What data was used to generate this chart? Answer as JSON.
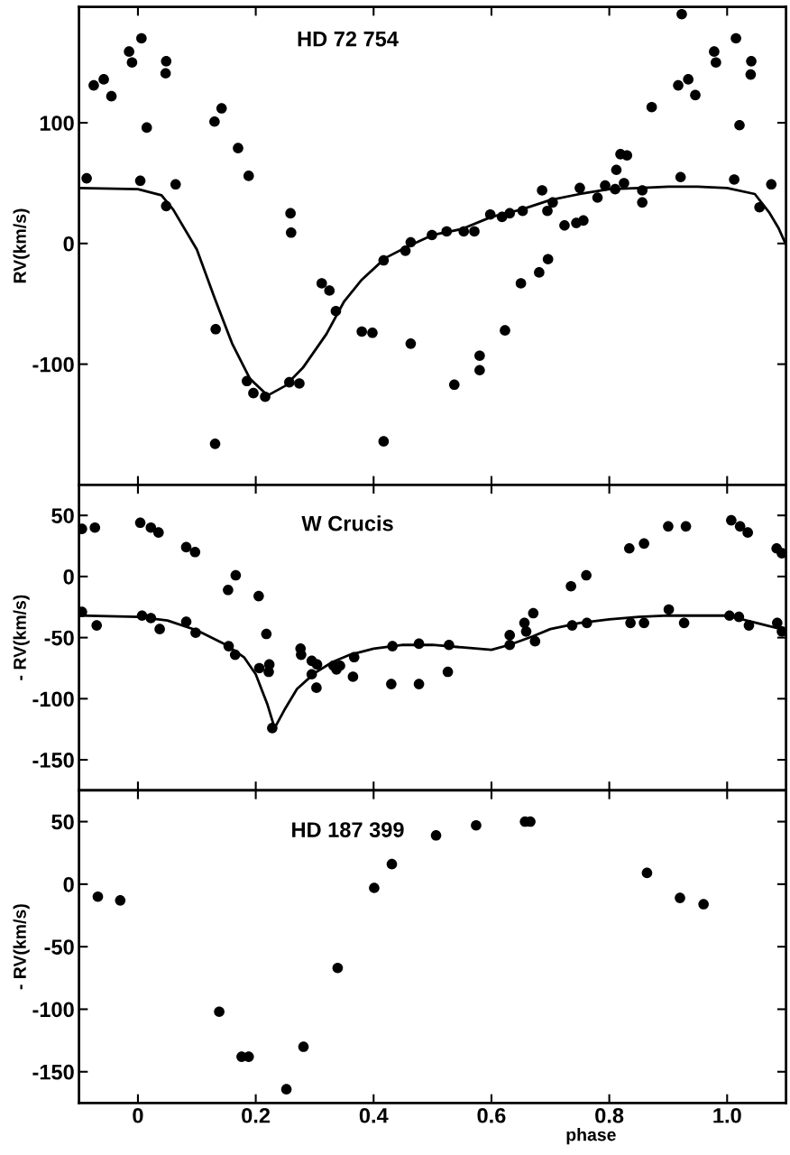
{
  "chart_data": [
    {
      "type": "scatter",
      "title": "HD 72 754",
      "ylabel": "RV(km/s)",
      "xlim": [
        -0.1,
        1.1
      ],
      "ylim": [
        -200,
        196
      ],
      "xticks": [
        0,
        0.2,
        0.4,
        0.6,
        0.8,
        1
      ],
      "yticks": [
        -100,
        0,
        100
      ],
      "tick_labels": "y",
      "marker": "circle",
      "grid": false,
      "legend": false,
      "series": [
        {
          "type": "scatter",
          "color": "#000000",
          "x": [
            -0.087,
            -0.075,
            -0.058,
            -0.045,
            -0.015,
            -0.01,
            0.006,
            0.015,
            0.004,
            0.048,
            0.047,
            0.064,
            0.048,
            0.13,
            0.142,
            0.132,
            0.131,
            0.17,
            0.188,
            0.185,
            0.196,
            0.216,
            0.259,
            0.26,
            0.257,
            0.274,
            0.312,
            0.325,
            0.336,
            0.38,
            0.398,
            0.417,
            0.417,
            0.454,
            0.463,
            0.463,
            0.499,
            0.524,
            0.553,
            0.571,
            0.598,
            0.618,
            0.631,
            0.653,
            0.686,
            0.695,
            0.704,
            0.724,
            0.744,
            0.756,
            0.75,
            0.78,
            0.793,
            0.81,
            0.812,
            0.819,
            0.83,
            0.825,
            0.856,
            0.856,
            0.537,
            0.58,
            0.58,
            0.623,
            0.65,
            0.681,
            0.696,
            0.872,
            0.917,
            0.934,
            0.946,
            0.923,
            0.921,
            0.978,
            0.981,
            1.015,
            1.021,
            1.041,
            1.04,
            1.012,
            1.055,
            1.075
          ],
          "values": [
            54,
            131,
            136,
            122,
            159,
            150,
            170,
            96,
            52,
            151,
            141,
            49,
            31,
            101,
            112,
            -71,
            -166,
            79,
            56,
            -114,
            -124,
            -127,
            25,
            9,
            -115,
            -116,
            -33,
            -39,
            -56,
            -73,
            -74,
            -14,
            -164,
            -6,
            1,
            -83,
            7,
            10,
            10,
            10,
            24,
            22,
            25,
            27,
            44,
            27,
            34,
            15,
            17,
            19,
            46,
            38,
            48,
            45,
            61,
            74,
            73,
            50,
            44,
            34,
            -117,
            -93,
            -105,
            -72,
            -33,
            -24,
            -13,
            113,
            131,
            136,
            123,
            190,
            55,
            159,
            150,
            170,
            98,
            151,
            140,
            53,
            30,
            49
          ]
        },
        {
          "type": "line",
          "color": "#000000",
          "marker": "none",
          "x": [
            -0.1,
            0.0,
            0.04,
            0.06,
            0.1,
            0.13,
            0.16,
            0.19,
            0.22,
            0.25,
            0.28,
            0.32,
            0.35,
            0.38,
            0.42,
            0.46,
            0.5,
            0.55,
            0.6,
            0.65,
            0.7,
            0.75,
            0.8,
            0.85,
            0.9,
            0.95,
            1.0,
            1.047,
            1.071,
            1.087,
            1.099
          ],
          "values": [
            46,
            45,
            40,
            28,
            -5,
            -45,
            -83,
            -112,
            -126,
            -118,
            -103,
            -75,
            -48,
            -30,
            -12,
            -2,
            7,
            12,
            22,
            28,
            36,
            41,
            45,
            46,
            47,
            47,
            46,
            41,
            26,
            13,
            0
          ]
        }
      ]
    },
    {
      "type": "scatter",
      "title": "W Crucis",
      "ylabel": "- RV(km/s)",
      "xlim": [
        -0.1,
        1.1
      ],
      "ylim": [
        -175,
        75
      ],
      "xticks": [
        0,
        0.2,
        0.4,
        0.6,
        0.8,
        1
      ],
      "yticks": [
        -150,
        -100,
        -50,
        0,
        50
      ],
      "tick_labels": "y",
      "marker": "circle",
      "grid": false,
      "legend": false,
      "series": [
        {
          "type": "scatter",
          "color": "#000000",
          "x": [
            -0.095,
            -0.073,
            -0.095,
            -0.07,
            0.004,
            0.022,
            0.035,
            0.007,
            0.022,
            0.037,
            0.082,
            0.097,
            0.082,
            0.098,
            0.153,
            0.166,
            0.154,
            0.165,
            0.205,
            0.218,
            0.206,
            0.223,
            0.222,
            0.228,
            0.276,
            0.277,
            0.295,
            0.304,
            0.295,
            0.303,
            0.332,
            0.337,
            0.343,
            0.367,
            0.365,
            0.43,
            0.477,
            0.432,
            0.477,
            0.528,
            0.526,
            0.631,
            0.631,
            0.656,
            0.659,
            0.671,
            0.674,
            0.735,
            0.761,
            0.737,
            0.762,
            0.834,
            0.859,
            0.836,
            0.859,
            0.9,
            0.93,
            0.901,
            0.927,
            1.007,
            1.022,
            1.035,
            1.004,
            1.02,
            1.037,
            1.084,
            1.093,
            1.085,
            1.093
          ],
          "values": [
            39,
            40,
            -29,
            -40,
            44,
            40,
            36,
            -32,
            -34,
            -43,
            24,
            20,
            -37,
            -46,
            -11,
            1,
            -57,
            -64,
            -16,
            -47,
            -75,
            -72,
            -78,
            -124,
            -59,
            -64,
            -69,
            -72,
            -80,
            -91,
            -73,
            -76,
            -73,
            -66,
            -82,
            -88,
            -88,
            -57,
            -55,
            -56,
            -78,
            -56,
            -48,
            -38,
            -45,
            -30,
            -53,
            -8,
            1,
            -40,
            -38,
            23,
            27,
            -38,
            -38,
            41,
            41,
            -27,
            -38,
            46,
            41,
            36,
            -32,
            -33,
            -40,
            23,
            19,
            -38,
            -45
          ]
        },
        {
          "type": "line",
          "color": "#000000",
          "marker": "none",
          "x": [
            -0.1,
            0.0,
            0.05,
            0.1,
            0.15,
            0.18,
            0.2,
            0.22,
            0.232,
            0.25,
            0.27,
            0.3,
            0.33,
            0.36,
            0.4,
            0.45,
            0.5,
            0.55,
            0.6,
            0.63,
            0.67,
            0.7,
            0.75,
            0.8,
            0.85,
            0.9,
            0.95,
            1.0,
            1.05,
            1.1
          ],
          "values": [
            -32,
            -33,
            -36,
            -44,
            -56,
            -66,
            -80,
            -105,
            -124,
            -108,
            -92,
            -79,
            -70,
            -64,
            -59,
            -56,
            -56,
            -58,
            -60,
            -56,
            -49,
            -43,
            -38,
            -35,
            -33,
            -32,
            -32,
            -32,
            -38,
            -44
          ]
        }
      ]
    },
    {
      "type": "scatter",
      "title": "HD 187 399",
      "ylabel": "- RV(km/s)",
      "xlabel": "phase",
      "xlim": [
        -0.1,
        1.1
      ],
      "ylim": [
        -175,
        75
      ],
      "xticks": [
        0,
        0.2,
        0.4,
        0.6,
        0.8,
        {
          "value": 1,
          "label": "1.0"
        }
      ],
      "yticks": [
        -150,
        -100,
        -50,
        0,
        50
      ],
      "marker": "circle",
      "grid": false,
      "legend": false,
      "series": [
        {
          "type": "scatter",
          "color": "#000000",
          "x": [
            -0.068,
            -0.03,
            0.138,
            0.176,
            0.188,
            0.252,
            0.281,
            0.339,
            0.401,
            0.431,
            0.506,
            0.574,
            0.657,
            0.666,
            0.864,
            0.92,
            0.96
          ],
          "values": [
            -10,
            -13,
            -102,
            -138,
            -138,
            -164,
            -130,
            -67,
            -3,
            16,
            39,
            47,
            50,
            50,
            9,
            -11,
            -16
          ]
        }
      ]
    }
  ]
}
